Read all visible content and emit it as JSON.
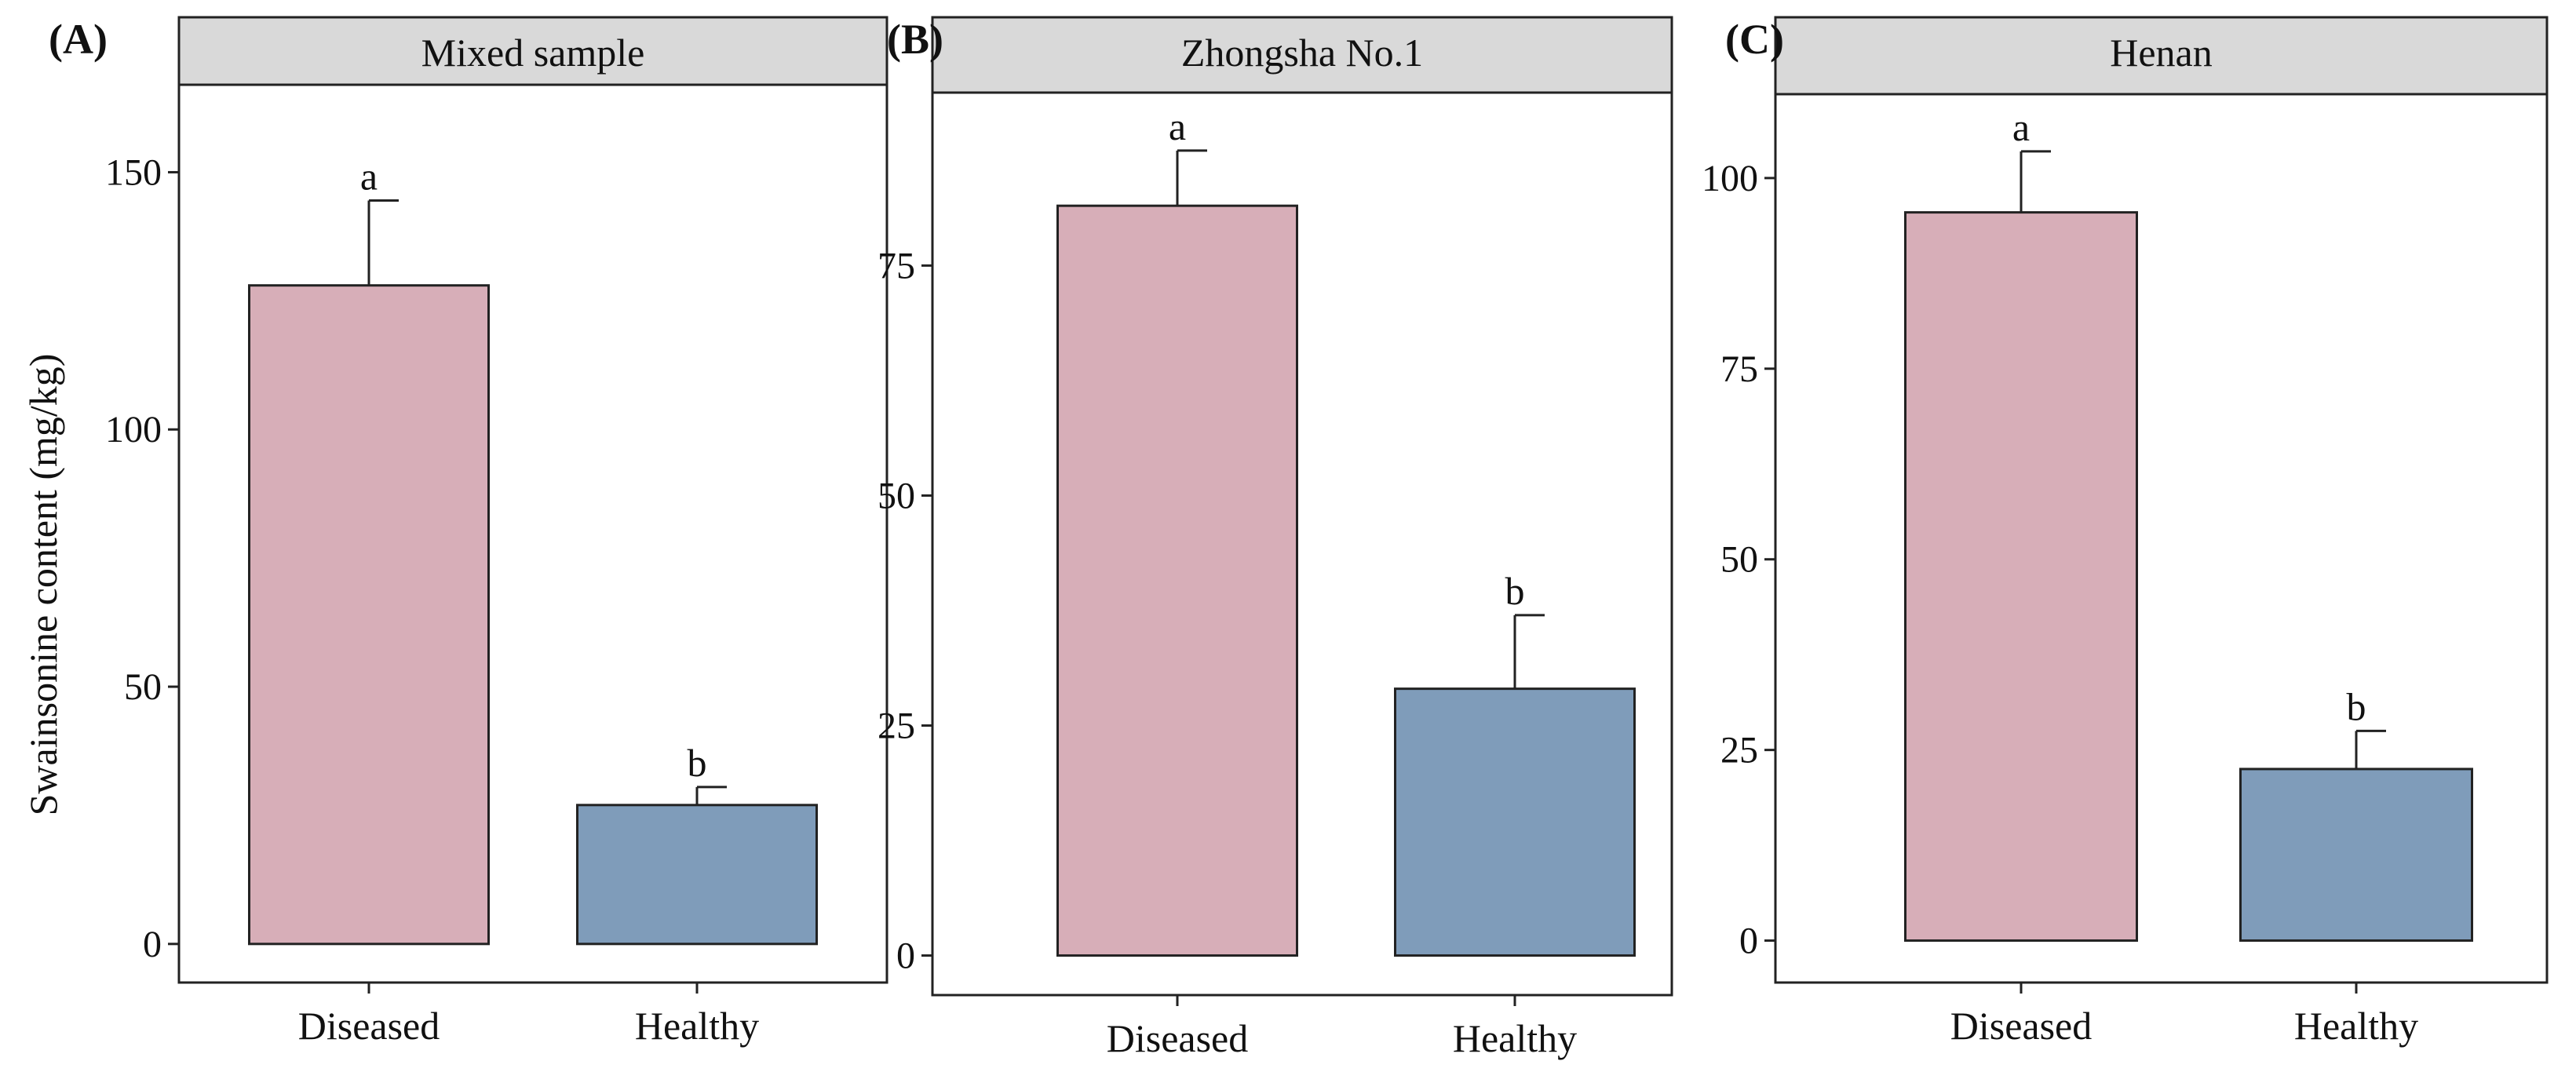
{
  "colors": {
    "diseased": "#d7aeb8",
    "healthy": "#7f9cba",
    "strip": "#d9d9d9",
    "frame": "#222222"
  },
  "shared": {
    "ylabel": "Swainsonine content (mg/kg)"
  },
  "chart_data": [
    {
      "panel_label": "(A)",
      "type": "bar",
      "title": "Mixed sample",
      "categories": [
        "Diseased",
        "Healthy"
      ],
      "values": [
        128,
        27
      ],
      "error": [
        16.5,
        3.5
      ],
      "sig_letters": [
        "a",
        "b"
      ],
      "yticks": [
        0,
        50,
        100,
        150
      ],
      "ylim": [
        -7.5,
        167
      ],
      "xlabel": "",
      "ylabel": "Swainsonine content (mg/kg)"
    },
    {
      "panel_label": "(B)",
      "type": "bar",
      "title": "Zhongsha No.1",
      "categories": [
        "Diseased",
        "Healthy"
      ],
      "values": [
        81.5,
        29
      ],
      "error": [
        6,
        8
      ],
      "sig_letters": [
        "a",
        "b"
      ],
      "yticks": [
        0,
        25,
        50,
        75
      ],
      "ylim": [
        -4.3,
        93.8
      ],
      "xlabel": "",
      "ylabel": ""
    },
    {
      "panel_label": "(C)",
      "type": "bar",
      "title": "Henan",
      "categories": [
        "Diseased",
        "Healthy"
      ],
      "values": [
        95.5,
        22.5
      ],
      "error": [
        8,
        5
      ],
      "sig_letters": [
        "a",
        "b"
      ],
      "yticks": [
        0,
        25,
        50,
        75,
        100
      ],
      "ylim": [
        -5.5,
        111
      ],
      "xlabel": "",
      "ylabel": ""
    }
  ]
}
